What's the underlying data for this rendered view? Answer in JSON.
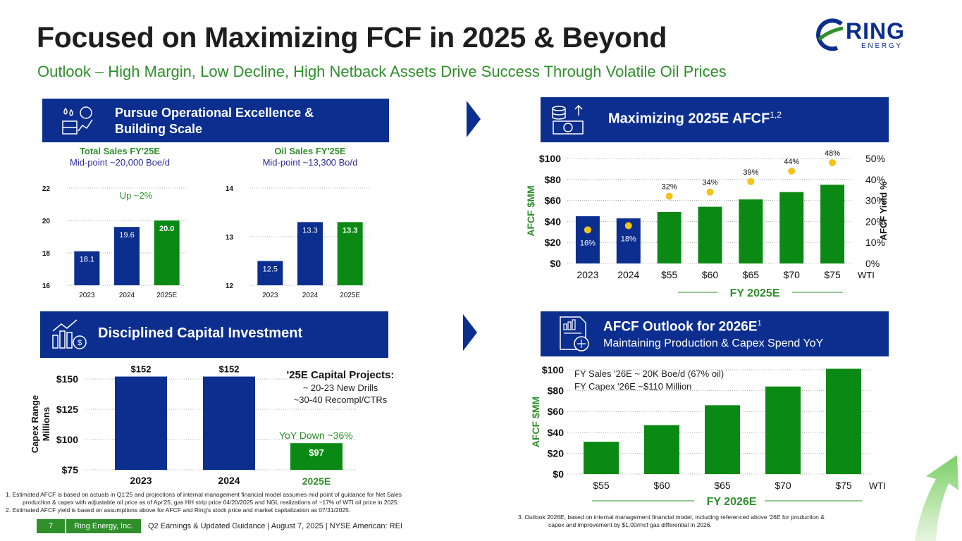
{
  "header": {
    "title": "Focused on Maximizing FCF in 2025 & Beyond",
    "subtitle": "Outlook – High Margin, Low Decline, High Netback Assets Drive Success Through Volatile Oil Prices"
  },
  "logo": {
    "name": "RING",
    "tagline": "E N E R G Y"
  },
  "colors": {
    "navy": "#0b2e8f",
    "green": "#2f8f2b",
    "bar_green": "#0a8a14",
    "gold": "#f2c318"
  },
  "panel_ops": {
    "title_line1": "Pursue Operational Excellence &",
    "title_line2": "Building Scale",
    "icon": "oil-production-icon",
    "total_sales": {
      "header": "Total Sales FY'25E",
      "sub": "Mid-point ~20,000 Boe/d",
      "annotation": "Up ~2%"
    },
    "oil_sales": {
      "header": "Oil Sales FY'25E",
      "sub": "Mid-point ~13,300 Bo/d"
    }
  },
  "panel_afcf25": {
    "title": "Maximizing 2025E AFCF",
    "superscript": "1,2",
    "icon": "money-stack-icon",
    "footer_label": "FY 2025E"
  },
  "panel_capex": {
    "title": "Disciplined Capital Investment",
    "icon": "growth-chart-icon",
    "projects_title": "'25E Capital Projects:",
    "projects_line1": "~ 20-23 New Drills",
    "projects_line2": "~30-40 Recompl/CTRs",
    "yoy": "YoY Down ~36%"
  },
  "panel_afcf26": {
    "title": "AFCF Outlook for 2026E",
    "superscript": "1",
    "sub": "Maintaining Production & Capex Spend YoY",
    "icon": "report-scale-icon",
    "note_line1": "FY Sales '26E ~ 20K Boe/d (67% oil)",
    "note_line2": "FY Capex '26E ~$110 Million",
    "footer_label": "FY 2026E"
  },
  "chart_data": [
    {
      "id": "total_sales",
      "type": "bar",
      "categories": [
        "2023",
        "2024",
        "2025E"
      ],
      "values": [
        18.1,
        19.6,
        20.0
      ],
      "labels": [
        "18.1",
        "19.6",
        "20.0"
      ],
      "yticks": [
        "16",
        "18",
        "20",
        "22"
      ],
      "ylim": [
        16,
        22
      ]
    },
    {
      "id": "oil_sales",
      "type": "bar",
      "categories": [
        "2023",
        "2024",
        "2025E"
      ],
      "values": [
        12.5,
        13.3,
        13.3
      ],
      "labels": [
        "12.5",
        "13.3",
        "13.3"
      ],
      "yticks": [
        "12",
        "13",
        "14"
      ],
      "ylim": [
        12,
        14
      ]
    },
    {
      "id": "afcf_2025",
      "type": "bar",
      "categories": [
        "2023",
        "2024",
        "$55",
        "$60",
        "$65",
        "$70",
        "$75"
      ],
      "values": [
        45,
        43,
        49,
        54,
        61,
        68,
        75
      ],
      "yield": [
        16,
        18,
        32,
        34,
        39,
        44,
        48
      ],
      "yield_labels": [
        "16%",
        "18%",
        "32%",
        "34%",
        "39%",
        "44%",
        "48%"
      ],
      "yticks": [
        "$0",
        "$20",
        "$40",
        "$60",
        "$80",
        "$100"
      ],
      "y2ticks": [
        "0%",
        "10%",
        "20%",
        "30%",
        "40%",
        "50%"
      ],
      "ylim": [
        0,
        100
      ],
      "y2lim": [
        0,
        50
      ],
      "ylabel": "AFCF $MM",
      "y2label": "AFCF Yield %",
      "xnote": "WTI"
    },
    {
      "id": "capex",
      "type": "bar",
      "categories": [
        "2023",
        "2024",
        "2025E"
      ],
      "values": [
        152,
        152,
        97
      ],
      "labels": [
        "$152",
        "$152",
        "$97"
      ],
      "yticks": [
        "$75",
        "$100",
        "$125",
        "$150"
      ],
      "ylim": [
        75,
        155
      ],
      "ylabel_line1": "Capex Range",
      "ylabel_line2": "Millions"
    },
    {
      "id": "afcf_2026",
      "type": "bar",
      "categories": [
        "$55",
        "$60",
        "$65",
        "$70",
        "$75"
      ],
      "values": [
        31,
        47,
        66,
        84,
        101
      ],
      "yticks": [
        "$0",
        "$20",
        "$40",
        "$60",
        "$80",
        "$100"
      ],
      "ylim": [
        0,
        100
      ],
      "ylabel": "AFCF $MM",
      "xnote": "WTI"
    }
  ],
  "footnotes": {
    "n1_line1": "1.  Estimated AFCF is based on actuals in Q1'25 and projections of internal management financial model assumes mid point of guidance for Net Sales",
    "n1_line2": "production & capex with adjustable oil price as of Apr'25, gas HH strip price 04/20/2025 and NGL realizations of ~17% of WTI oil price in 2025.",
    "n2": "2. Estimated AFCF yield is based on assumptions above for AFCF and Ring's stock price and market capitalization as 07/31/2025.",
    "n3_line1": "3.      Outlook 2026E, based on internal management financial model, including referenced above '26E for production &",
    "n3_line2": "capex and improvement by $1.00/mcf gas differential in 2026."
  },
  "footer": {
    "page": "7",
    "company": "Ring Energy, Inc.",
    "text": "Q2 Earnings & Updated Guidance | August 7, 2025 |  NYSE American: REI"
  }
}
